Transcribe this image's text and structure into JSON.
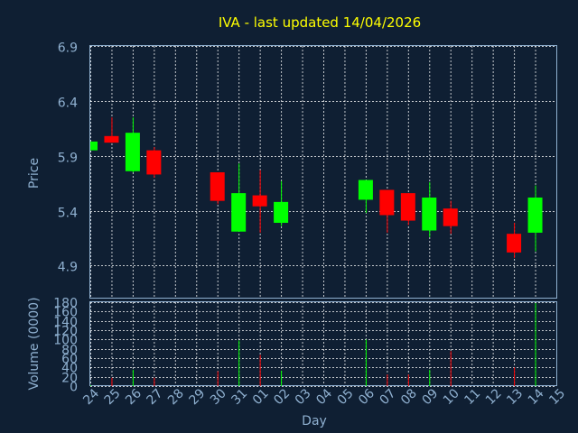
{
  "chart_data": {
    "type": "candlestick",
    "title": "IVA - last updated 14/04/2026",
    "xlabel": "Day",
    "ylabel_price": "Price",
    "ylabel_volume": "Volume (0000)",
    "x_ticks": [
      "24",
      "25",
      "26",
      "27",
      "28",
      "29",
      "30",
      "31",
      "01",
      "02",
      "03",
      "04",
      "05",
      "06",
      "07",
      "08",
      "09",
      "10",
      "11",
      "12",
      "13",
      "14",
      "15"
    ],
    "price_ylim": [
      4.6,
      6.9
    ],
    "price_ticks": [
      "6.9",
      "6.4",
      "5.9",
      "5.4",
      "4.9"
    ],
    "volume_ylim": [
      0,
      180
    ],
    "volume_ticks": [
      "180",
      "160",
      "140",
      "120",
      "100",
      "80",
      "60",
      "40",
      "20",
      "0"
    ],
    "colors": {
      "background": "#0f1f33",
      "title": "#ffff00",
      "axis_text": "#8fb0d0",
      "grid": "#ffffff",
      "up": "#00ff00",
      "down": "#ff0000"
    },
    "candles": [
      {
        "day": "24",
        "open": 5.95,
        "close": 6.03,
        "high": 6.03,
        "low": 5.95
      },
      {
        "day": "25",
        "open": 6.08,
        "close": 6.02,
        "high": 6.25,
        "low": 6.02
      },
      {
        "day": "26",
        "open": 5.76,
        "close": 6.11,
        "high": 6.25,
        "low": 5.75
      },
      {
        "day": "27",
        "open": 5.95,
        "close": 5.73,
        "high": 5.98,
        "low": 5.7
      },
      {
        "day": "30",
        "open": 5.75,
        "close": 5.49,
        "high": 5.75,
        "low": 5.46
      },
      {
        "day": "31",
        "open": 5.21,
        "close": 5.56,
        "high": 5.83,
        "low": 5.21
      },
      {
        "day": "01",
        "open": 5.54,
        "close": 5.44,
        "high": 5.77,
        "low": 5.2
      },
      {
        "day": "02",
        "open": 5.29,
        "close": 5.48,
        "high": 5.67,
        "low": 5.26
      },
      {
        "day": "06",
        "open": 5.5,
        "close": 5.68,
        "high": 5.68,
        "low": 5.38
      },
      {
        "day": "07",
        "open": 5.59,
        "close": 5.36,
        "high": 5.59,
        "low": 5.2
      },
      {
        "day": "08",
        "open": 5.56,
        "close": 5.31,
        "high": 5.56,
        "low": 5.27
      },
      {
        "day": "09",
        "open": 5.22,
        "close": 5.52,
        "high": 5.66,
        "low": 5.16
      },
      {
        "day": "10",
        "open": 5.42,
        "close": 5.26,
        "high": 5.49,
        "low": 5.19
      },
      {
        "day": "13",
        "open": 5.19,
        "close": 5.02,
        "high": 5.29,
        "low": 4.97
      },
      {
        "day": "14",
        "open": 5.2,
        "close": 5.52,
        "high": 5.63,
        "low": 5.03
      }
    ],
    "volume": [
      {
        "day": "24",
        "value": 2,
        "dir": "up"
      },
      {
        "day": "25",
        "value": 18,
        "dir": "down"
      },
      {
        "day": "26",
        "value": 35,
        "dir": "up"
      },
      {
        "day": "27",
        "value": 18,
        "dir": "down"
      },
      {
        "day": "30",
        "value": 32,
        "dir": "down"
      },
      {
        "day": "31",
        "value": 98,
        "dir": "up"
      },
      {
        "day": "01",
        "value": 67,
        "dir": "down"
      },
      {
        "day": "02",
        "value": 33,
        "dir": "up"
      },
      {
        "day": "06",
        "value": 100,
        "dir": "up"
      },
      {
        "day": "07",
        "value": 25,
        "dir": "down"
      },
      {
        "day": "08",
        "value": 25,
        "dir": "down"
      },
      {
        "day": "09",
        "value": 35,
        "dir": "up"
      },
      {
        "day": "10",
        "value": 75,
        "dir": "down"
      },
      {
        "day": "13",
        "value": 40,
        "dir": "down"
      },
      {
        "day": "14",
        "value": 178,
        "dir": "up"
      }
    ]
  }
}
